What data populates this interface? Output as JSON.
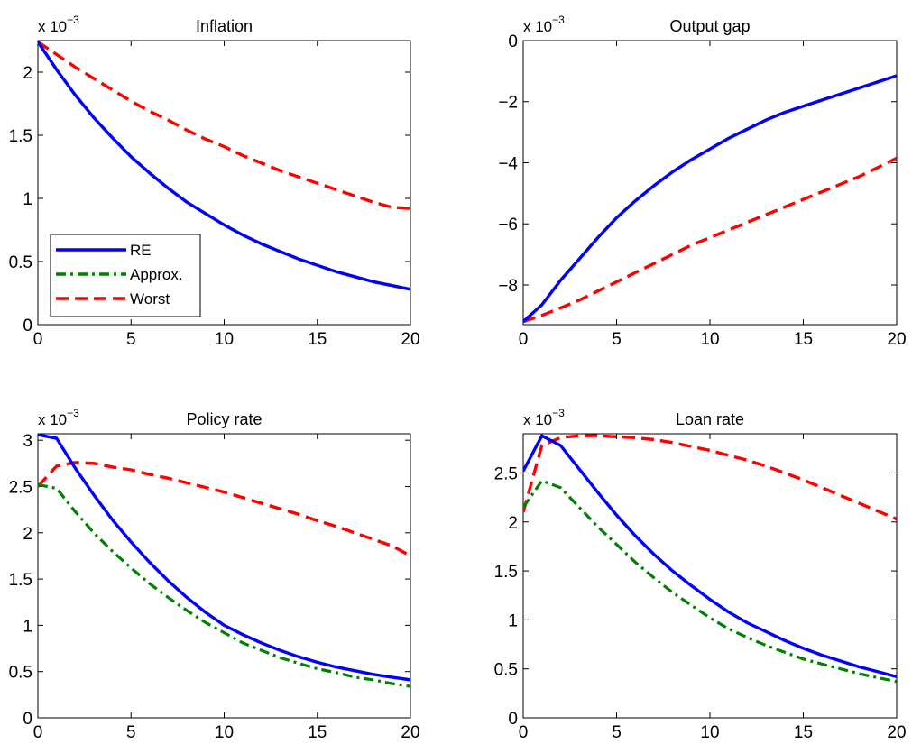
{
  "figure": {
    "legend": {
      "location": "lower-left",
      "entries": [
        "RE",
        "Approx.",
        "Worst"
      ]
    }
  },
  "chart_data": [
    {
      "id": "inflation",
      "type": "line",
      "title": "Inflation",
      "xlabel": "",
      "ylabel": "",
      "scale_prefix": "x 10",
      "scale_exponent": "−3",
      "xlim": [
        0,
        20
      ],
      "ylim": [
        0,
        2.25
      ],
      "xticks": [
        0,
        5,
        10,
        15,
        20
      ],
      "yticks": [
        0,
        0.5,
        1,
        1.5,
        2
      ],
      "ytick_labels": [
        "0",
        "0.5",
        "1",
        "1.5",
        "2"
      ],
      "grid": false,
      "x": [
        0,
        1,
        2,
        3,
        4,
        5,
        6,
        7,
        8,
        9,
        10,
        11,
        12,
        13,
        14,
        15,
        16,
        17,
        18,
        19,
        20
      ],
      "series": [
        {
          "name": "RE",
          "color": "#0000ff",
          "dash": "solid",
          "values": [
            2.24,
            2.02,
            1.82,
            1.64,
            1.48,
            1.33,
            1.2,
            1.08,
            0.97,
            0.88,
            0.79,
            0.71,
            0.64,
            0.58,
            0.52,
            0.47,
            0.42,
            0.38,
            0.34,
            0.31,
            0.28
          ]
        },
        {
          "name": "Approx.",
          "color": "#008000",
          "dash": "dashdot",
          "values": [
            2.24,
            2.02,
            1.82,
            1.64,
            1.48,
            1.33,
            1.2,
            1.08,
            0.97,
            0.88,
            0.79,
            0.71,
            0.64,
            0.58,
            0.52,
            0.47,
            0.42,
            0.38,
            0.34,
            0.31,
            0.28
          ]
        },
        {
          "name": "Worst",
          "color": "#ff0000",
          "dash": "dashed",
          "values": [
            2.24,
            2.14,
            2.04,
            1.95,
            1.86,
            1.77,
            1.69,
            1.62,
            1.54,
            1.47,
            1.41,
            1.34,
            1.28,
            1.22,
            1.17,
            1.12,
            1.07,
            1.02,
            0.97,
            0.93,
            0.92
          ]
        }
      ]
    },
    {
      "id": "output-gap",
      "type": "line",
      "title": "Output gap",
      "xlabel": "",
      "ylabel": "",
      "scale_prefix": "x 10",
      "scale_exponent": "−3",
      "xlim": [
        0,
        20
      ],
      "ylim": [
        -9.3,
        0
      ],
      "xticks": [
        0,
        5,
        10,
        15,
        20
      ],
      "yticks": [
        -8,
        -6,
        -4,
        -2,
        0
      ],
      "ytick_labels": [
        "−8",
        "−6",
        "−4",
        "−2",
        "0"
      ],
      "grid": false,
      "x": [
        0,
        1,
        2,
        3,
        4,
        5,
        6,
        7,
        8,
        9,
        10,
        11,
        12,
        13,
        14,
        15,
        16,
        17,
        18,
        19,
        20
      ],
      "series": [
        {
          "name": "RE",
          "color": "#0000ff",
          "dash": "solid",
          "values": [
            -9.2,
            -8.65,
            -7.85,
            -7.15,
            -6.45,
            -5.8,
            -5.25,
            -4.75,
            -4.3,
            -3.9,
            -3.55,
            -3.2,
            -2.9,
            -2.6,
            -2.35,
            -2.15,
            -1.95,
            -1.75,
            -1.55,
            -1.35,
            -1.15
          ]
        },
        {
          "name": "Approx.",
          "color": "#008000",
          "dash": "dashdot",
          "values": [
            -9.2,
            -8.65,
            -7.85,
            -7.15,
            -6.45,
            -5.8,
            -5.25,
            -4.75,
            -4.3,
            -3.9,
            -3.55,
            -3.2,
            -2.9,
            -2.6,
            -2.35,
            -2.15,
            -1.95,
            -1.75,
            -1.55,
            -1.35,
            -1.15
          ]
        },
        {
          "name": "Worst",
          "color": "#ff0000",
          "dash": "dashed",
          "values": [
            -9.2,
            -9.0,
            -8.75,
            -8.5,
            -8.2,
            -7.9,
            -7.6,
            -7.3,
            -7.0,
            -6.7,
            -6.45,
            -6.2,
            -5.95,
            -5.7,
            -5.45,
            -5.2,
            -4.95,
            -4.7,
            -4.45,
            -4.15,
            -3.85
          ]
        }
      ]
    },
    {
      "id": "policy-rate",
      "type": "line",
      "title": "Policy rate",
      "xlabel": "",
      "ylabel": "",
      "scale_prefix": "x 10",
      "scale_exponent": "−3",
      "xlim": [
        0,
        20
      ],
      "ylim": [
        0,
        3.07
      ],
      "xticks": [
        0,
        5,
        10,
        15,
        20
      ],
      "yticks": [
        0,
        0.5,
        1,
        1.5,
        2,
        2.5,
        3
      ],
      "ytick_labels": [
        "0",
        "0.5",
        "1",
        "1.5",
        "2",
        "2.5",
        "3"
      ],
      "grid": false,
      "x": [
        0,
        1,
        2,
        3,
        4,
        5,
        6,
        7,
        8,
        9,
        10,
        11,
        12,
        13,
        14,
        15,
        16,
        17,
        18,
        19,
        20
      ],
      "series": [
        {
          "name": "RE",
          "color": "#0000ff",
          "dash": "solid",
          "values": [
            3.06,
            3.02,
            2.7,
            2.41,
            2.14,
            1.9,
            1.68,
            1.48,
            1.3,
            1.14,
            1.0,
            0.9,
            0.81,
            0.73,
            0.66,
            0.6,
            0.55,
            0.51,
            0.47,
            0.44,
            0.41
          ]
        },
        {
          "name": "Approx.",
          "color": "#008000",
          "dash": "dashdot",
          "values": [
            2.52,
            2.48,
            2.23,
            2.0,
            1.8,
            1.62,
            1.45,
            1.3,
            1.16,
            1.03,
            0.92,
            0.81,
            0.73,
            0.65,
            0.59,
            0.53,
            0.49,
            0.44,
            0.41,
            0.37,
            0.34
          ]
        },
        {
          "name": "Worst",
          "color": "#ff0000",
          "dash": "dashed",
          "values": [
            2.5,
            2.72,
            2.76,
            2.75,
            2.71,
            2.68,
            2.63,
            2.59,
            2.54,
            2.49,
            2.44,
            2.38,
            2.32,
            2.26,
            2.2,
            2.13,
            2.07,
            2.0,
            1.93,
            1.86,
            1.75
          ]
        }
      ]
    },
    {
      "id": "loan-rate",
      "type": "line",
      "title": "Loan rate",
      "xlabel": "",
      "ylabel": "",
      "scale_prefix": "x 10",
      "scale_exponent": "−3",
      "xlim": [
        0,
        20
      ],
      "ylim": [
        0,
        2.9
      ],
      "xticks": [
        0,
        5,
        10,
        15,
        20
      ],
      "yticks": [
        0,
        0.5,
        1,
        1.5,
        2,
        2.5
      ],
      "ytick_labels": [
        "0",
        "0.5",
        "1",
        "1.5",
        "2",
        "2.5"
      ],
      "grid": false,
      "x": [
        0,
        1,
        2,
        3,
        4,
        5,
        6,
        7,
        8,
        9,
        10,
        11,
        12,
        13,
        14,
        15,
        16,
        17,
        18,
        19,
        20
      ],
      "series": [
        {
          "name": "RE",
          "color": "#0000ff",
          "dash": "solid",
          "values": [
            2.52,
            2.88,
            2.78,
            2.54,
            2.3,
            2.07,
            1.86,
            1.67,
            1.5,
            1.35,
            1.21,
            1.08,
            0.97,
            0.88,
            0.79,
            0.71,
            0.64,
            0.58,
            0.52,
            0.47,
            0.42
          ]
        },
        {
          "name": "Approx.",
          "color": "#008000",
          "dash": "dashdot",
          "values": [
            2.15,
            2.42,
            2.35,
            2.15,
            1.95,
            1.77,
            1.59,
            1.43,
            1.28,
            1.15,
            1.02,
            0.91,
            0.82,
            0.74,
            0.67,
            0.6,
            0.55,
            0.5,
            0.45,
            0.41,
            0.37
          ]
        },
        {
          "name": "Worst",
          "color": "#ff0000",
          "dash": "dashed",
          "values": [
            2.1,
            2.78,
            2.86,
            2.88,
            2.88,
            2.87,
            2.86,
            2.84,
            2.81,
            2.77,
            2.73,
            2.68,
            2.63,
            2.57,
            2.5,
            2.43,
            2.35,
            2.27,
            2.19,
            2.11,
            2.03
          ]
        }
      ]
    }
  ]
}
